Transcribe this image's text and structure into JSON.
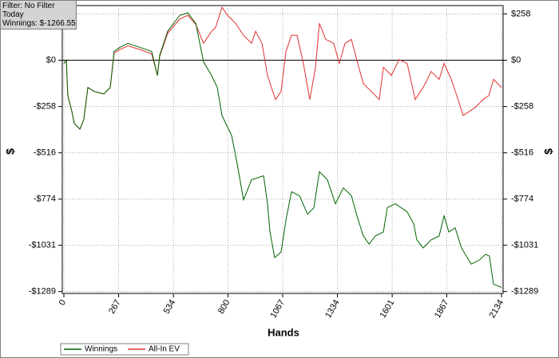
{
  "info": {
    "filter": "Filter: No Filter",
    "period": "Today",
    "winnings": "Winnings: $-1266.55"
  },
  "chart_data": {
    "type": "line",
    "xlabel": "Hands",
    "ylabel": "$",
    "xlim": [
      0,
      2134
    ],
    "xticks": [
      0,
      267,
      534,
      800,
      1067,
      1334,
      1601,
      1867,
      2134
    ],
    "ylim": [
      -1295,
      300
    ],
    "yticks": [
      {
        "value": 258,
        "label": "$258"
      },
      {
        "value": 0,
        "label": "$0"
      },
      {
        "value": -258,
        "label": "-$258"
      },
      {
        "value": -516,
        "label": "-$516"
      },
      {
        "value": -774,
        "label": "-$774"
      },
      {
        "value": -1031,
        "label": "-$1031"
      },
      {
        "value": -1289,
        "label": "-$1289"
      }
    ],
    "grid": true,
    "series": [
      {
        "name": "Winnings",
        "color": "#006400",
        "x": [
          0,
          12,
          19,
          39,
          51,
          78,
          97,
          117,
          148,
          195,
          226,
          245,
          273,
          312,
          370,
          428,
          456,
          467,
          506,
          565,
          604,
          643,
          681,
          720,
          748,
          771,
          818,
          845,
          876,
          915,
          974,
          993,
          1005,
          1028,
          1059,
          1083,
          1110,
          1149,
          1188,
          1219,
          1246,
          1285,
          1324,
          1363,
          1402,
          1429,
          1460,
          1488,
          1519,
          1558,
          1577,
          1616,
          1674,
          1706,
          1721,
          1752,
          1791,
          1830,
          1854,
          1877,
          1908,
          1939,
          1986,
          2025,
          2056,
          2075,
          2095,
          2134
        ],
        "values": [
          -18,
          0,
          -197,
          -286,
          -353,
          -384,
          -331,
          -152,
          -174,
          -188,
          -152,
          49,
          72,
          94,
          72,
          49,
          -85,
          27,
          161,
          250,
          264,
          206,
          -9,
          -85,
          -152,
          -308,
          -420,
          -577,
          -778,
          -666,
          -644,
          -800,
          -957,
          -1100,
          -1069,
          -890,
          -733,
          -755,
          -858,
          -822,
          -621,
          -666,
          -800,
          -711,
          -755,
          -867,
          -979,
          -1024,
          -979,
          -957,
          -822,
          -800,
          -845,
          -912,
          -1001,
          -1046,
          -1001,
          -979,
          -867,
          -957,
          -934,
          -1046,
          -1136,
          -1114,
          -1082,
          -1091,
          -1248,
          -1266
        ]
      },
      {
        "name": "All-In EV",
        "color": "#e03030",
        "x": [
          0,
          12,
          19,
          39,
          51,
          78,
          97,
          117,
          148,
          195,
          226,
          245,
          273,
          312,
          370,
          428,
          456,
          467,
          506,
          565,
          604,
          643,
          681,
          720,
          740,
          771,
          798,
          837,
          876,
          915,
          935,
          966,
          993,
          1012,
          1032,
          1059,
          1083,
          1110,
          1137,
          1168,
          1199,
          1227,
          1246,
          1277,
          1316,
          1343,
          1371,
          1402,
          1433,
          1460,
          1499,
          1538,
          1558,
          1597,
          1635,
          1674,
          1713,
          1752,
          1791,
          1830,
          1854,
          1889,
          1916,
          1947,
          2005,
          2044,
          2072,
          2095,
          2134
        ],
        "values": [
          -18,
          0,
          -197,
          -286,
          -353,
          -384,
          -331,
          -152,
          -174,
          -188,
          -152,
          40,
          60,
          80,
          60,
          35,
          -85,
          20,
          150,
          230,
          250,
          200,
          94,
          161,
          183,
          295,
          250,
          206,
          139,
          94,
          161,
          94,
          -85,
          -152,
          -219,
          -174,
          49,
          139,
          139,
          -18,
          -219,
          -40,
          206,
          116,
          94,
          -18,
          94,
          116,
          -18,
          -130,
          -174,
          -219,
          -40,
          -85,
          4,
          -18,
          -219,
          -152,
          -63,
          -107,
          -18,
          -107,
          -197,
          -308,
          -264,
          -219,
          -197,
          -107,
          -152
        ]
      }
    ]
  }
}
